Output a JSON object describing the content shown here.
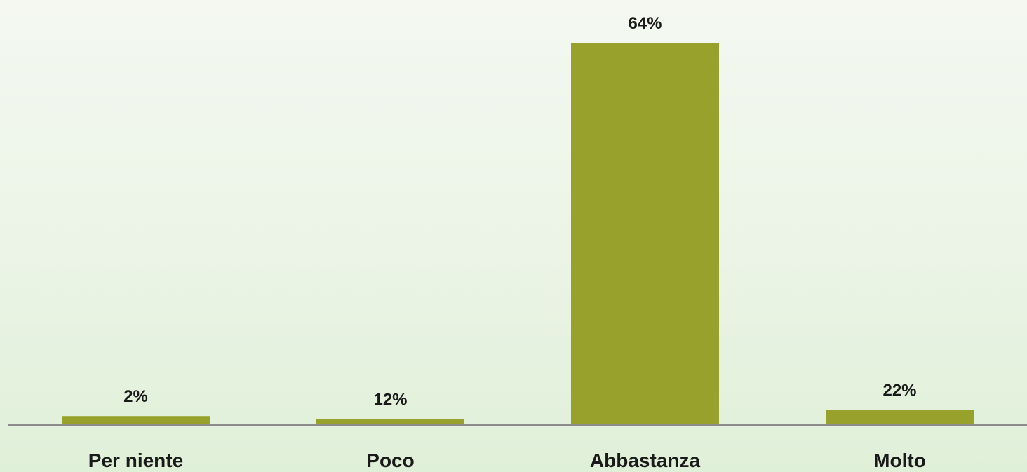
{
  "chart_data": {
    "type": "bar",
    "categories": [
      "Per niente",
      "Poco",
      "Abbastanza",
      "Molto"
    ],
    "values": [
      2,
      12,
      64,
      22
    ],
    "data_labels": [
      "2%",
      "12%",
      "64%",
      "22%"
    ],
    "bar_values_visual": [
      1.5,
      1.0,
      64,
      2.5
    ],
    "ylim": [
      0,
      64
    ],
    "grid": false,
    "legend": "none",
    "colors": {
      "bar": "#97a12c",
      "axis": "#8c8c8c"
    }
  }
}
